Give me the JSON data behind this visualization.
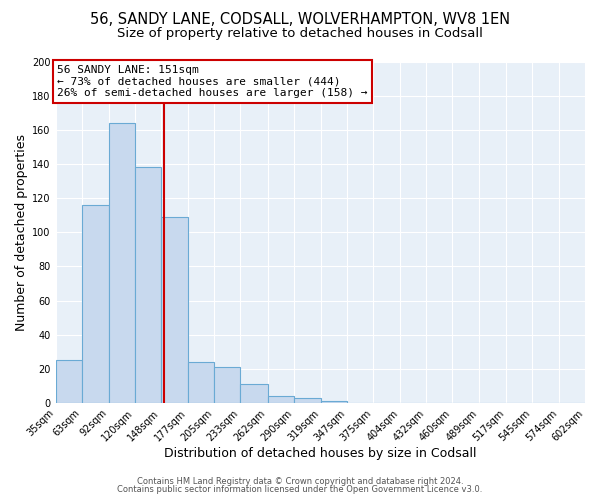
{
  "title": "56, SANDY LANE, CODSALL, WOLVERHAMPTON, WV8 1EN",
  "subtitle": "Size of property relative to detached houses in Codsall",
  "xlabel": "Distribution of detached houses by size in Codsall",
  "ylabel": "Number of detached properties",
  "bin_labels": [
    "35sqm",
    "63sqm",
    "92sqm",
    "120sqm",
    "148sqm",
    "177sqm",
    "205sqm",
    "233sqm",
    "262sqm",
    "290sqm",
    "319sqm",
    "347sqm",
    "375sqm",
    "404sqm",
    "432sqm",
    "460sqm",
    "489sqm",
    "517sqm",
    "545sqm",
    "574sqm",
    "602sqm"
  ],
  "bar_heights": [
    25,
    116,
    164,
    138,
    109,
    24,
    21,
    11,
    4,
    3,
    1,
    0,
    0,
    0,
    0,
    0,
    0,
    0,
    0,
    0,
    2
  ],
  "bar_color": "#c8d9ee",
  "bar_edge_color": "#6aaad4",
  "property_line_x": 151,
  "property_line_label": "56 SANDY LANE: 151sqm",
  "annotation_line1": "← 73% of detached houses are smaller (444)",
  "annotation_line2": "26% of semi-detached houses are larger (158) →",
  "annotation_box_color": "#ffffff",
  "annotation_box_edge": "#cc0000",
  "vline_color": "#cc0000",
  "ylim": [
    0,
    200
  ],
  "yticks": [
    0,
    20,
    40,
    60,
    80,
    100,
    120,
    140,
    160,
    180,
    200
  ],
  "footer1": "Contains HM Land Registry data © Crown copyright and database right 2024.",
  "footer2": "Contains public sector information licensed under the Open Government Licence v3.0.",
  "bg_color": "#ffffff",
  "plot_bg_color": "#e8f0f8",
  "grid_color": "#ffffff",
  "title_fontsize": 10.5,
  "subtitle_fontsize": 9.5,
  "axis_label_fontsize": 9,
  "tick_fontsize": 7,
  "footer_fontsize": 6,
  "annotation_fontsize": 8
}
